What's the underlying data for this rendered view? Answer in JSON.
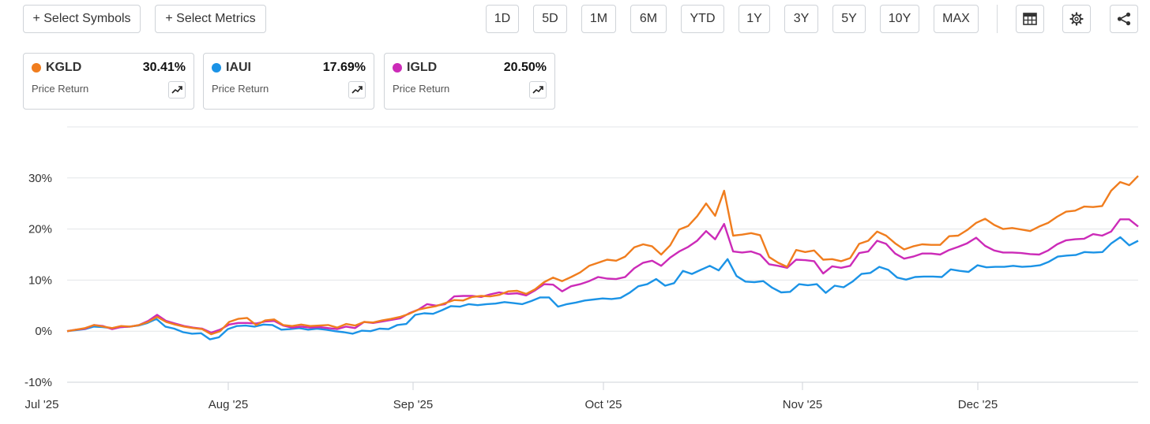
{
  "toolbar": {
    "select_symbols": "+ Select Symbols",
    "select_metrics": "+ Select Metrics",
    "ranges": [
      "1D",
      "5D",
      "1M",
      "6M",
      "YTD",
      "1Y",
      "3Y",
      "5Y",
      "10Y",
      "MAX"
    ],
    "icons": [
      "table-icon",
      "gear-icon",
      "share-icon"
    ]
  },
  "cards": [
    {
      "symbol": "KGLD",
      "return": "30.41%",
      "metric": "Price Return",
      "color": "#f07d1e"
    },
    {
      "symbol": "IAUI",
      "return": "17.69%",
      "metric": "Price Return",
      "color": "#1b93e6"
    },
    {
      "symbol": "IGLD",
      "return": "20.50%",
      "metric": "Price Return",
      "color": "#cc2bb8"
    }
  ],
  "chart_data": {
    "type": "line",
    "x_ticks": [
      "Jul '25",
      "Aug '25",
      "Sep '25",
      "Oct '25",
      "Nov '25",
      "Dec '25"
    ],
    "y_ticks": [
      "30%",
      "20%",
      "10%",
      "0%",
      "-10%"
    ],
    "ylim": [
      -10,
      40
    ],
    "grid": true,
    "series": [
      {
        "name": "KGLD",
        "color": "#f07d1e",
        "values": [
          0,
          0.3,
          0.6,
          1.2,
          0.9,
          0.6,
          1.0,
          0.9,
          1.2,
          1.8,
          2.8,
          1.8,
          1.3,
          0.9,
          0.6,
          0.4,
          -0.6,
          0.0,
          1.8,
          2.4,
          2.6,
          1.2,
          2.1,
          2.3,
          1.2,
          1.0,
          1.3,
          1.0,
          1.1,
          1.2,
          0.7,
          1.4,
          1.1,
          1.8,
          1.7,
          2.1,
          2.4,
          2.8,
          3.4,
          4.2,
          4.6,
          4.9,
          5.5,
          6.1,
          6.0,
          6.7,
          6.9,
          6.8,
          7.1,
          7.8,
          7.9,
          7.3,
          8.2,
          9.6,
          10.5,
          9.8,
          10.6,
          11.5,
          12.8,
          13.4,
          14.0,
          13.8,
          14.6,
          16.4,
          17.0,
          16.6,
          15.0,
          16.8,
          19.9,
          20.6,
          22.5,
          25.0,
          22.6,
          27.5,
          18.7,
          18.9,
          19.2,
          18.8,
          14.5,
          13.4,
          12.6,
          15.9,
          15.5,
          15.8,
          14.0,
          14.1,
          13.7,
          14.3,
          17.1,
          17.7,
          19.5,
          18.7,
          17.2,
          16.0,
          16.6,
          17.0,
          16.9,
          16.9,
          18.6,
          18.7,
          19.8,
          21.2,
          22.0,
          20.8,
          20.0,
          20.2,
          19.9,
          19.6,
          20.5,
          21.2,
          22.4,
          23.4,
          23.6,
          24.4,
          24.3,
          24.5,
          27.5,
          29.2,
          28.6,
          30.4
        ]
      },
      {
        "name": "IAUI",
        "color": "#1b93e6",
        "values": [
          0,
          0.2,
          0.4,
          0.9,
          0.8,
          0.6,
          0.8,
          0.9,
          1.1,
          1.6,
          2.4,
          0.9,
          0.5,
          -0.2,
          -0.5,
          -0.4,
          -1.6,
          -1.2,
          0.4,
          1.0,
          1.1,
          0.9,
          1.3,
          1.2,
          0.3,
          0.4,
          0.6,
          0.3,
          0.5,
          0.3,
          0.0,
          -0.2,
          -0.5,
          0.1,
          0.0,
          0.5,
          0.4,
          1.2,
          1.4,
          3.2,
          3.5,
          3.4,
          4.1,
          4.9,
          4.8,
          5.3,
          5.1,
          5.3,
          5.4,
          5.7,
          5.5,
          5.3,
          5.9,
          6.6,
          6.6,
          4.8,
          5.3,
          5.6,
          6.0,
          6.2,
          6.4,
          6.3,
          6.5,
          7.5,
          8.8,
          9.2,
          10.2,
          8.9,
          9.4,
          11.8,
          11.2,
          12.0,
          12.8,
          11.9,
          14.1,
          10.8,
          9.7,
          9.6,
          9.8,
          8.5,
          7.6,
          7.7,
          9.2,
          9.0,
          9.2,
          7.5,
          8.9,
          8.6,
          9.7,
          11.2,
          11.4,
          12.6,
          12.0,
          10.5,
          10.1,
          10.6,
          10.7,
          10.7,
          10.6,
          12.1,
          11.8,
          11.6,
          12.9,
          12.5,
          12.6,
          12.6,
          12.8,
          12.6,
          12.7,
          12.9,
          13.6,
          14.6,
          14.8,
          14.9,
          15.5,
          15.4,
          15.5,
          17.2,
          18.4,
          16.8,
          17.7
        ]
      },
      {
        "name": "IGLD",
        "color": "#cc2bb8",
        "values": [
          0,
          0.3,
          0.5,
          1.2,
          1.0,
          0.4,
          0.8,
          0.9,
          1.2,
          2.0,
          3.2,
          2.0,
          1.5,
          1.0,
          0.7,
          0.5,
          -0.3,
          0.3,
          1.3,
          1.6,
          1.6,
          1.5,
          1.9,
          2.0,
          1.1,
          0.7,
          0.9,
          0.7,
          0.8,
          0.6,
          0.4,
          0.9,
          0.6,
          1.8,
          1.6,
          1.9,
          2.2,
          2.5,
          3.5,
          4.2,
          5.3,
          5.0,
          5.3,
          6.8,
          6.9,
          6.9,
          6.7,
          7.2,
          7.6,
          7.3,
          7.4,
          7.0,
          8.0,
          9.2,
          9.1,
          7.8,
          8.8,
          9.2,
          9.8,
          10.6,
          10.3,
          10.2,
          10.6,
          12.3,
          13.4,
          13.8,
          12.8,
          14.4,
          15.6,
          16.5,
          17.7,
          19.6,
          18.0,
          21.0,
          15.6,
          15.4,
          15.6,
          15.0,
          13.1,
          12.8,
          12.4,
          14.0,
          13.9,
          13.7,
          11.3,
          12.7,
          12.4,
          12.8,
          15.3,
          15.6,
          17.7,
          17.1,
          15.2,
          14.2,
          14.6,
          15.2,
          15.2,
          15.0,
          15.9,
          16.5,
          17.2,
          18.3,
          16.7,
          15.8,
          15.4,
          15.4,
          15.3,
          15.1,
          15.0,
          15.8,
          17.0,
          17.8,
          18.0,
          18.1,
          19.0,
          18.7,
          19.5,
          21.9,
          21.9,
          20.5
        ]
      }
    ]
  }
}
